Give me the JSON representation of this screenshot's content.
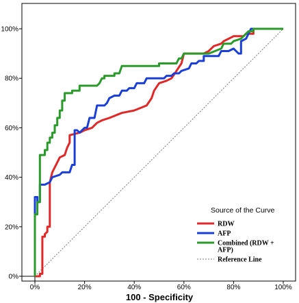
{
  "chart_data": {
    "type": "line",
    "title": "",
    "xlabel": "100 - Specificity",
    "ylabel": "",
    "xlim": [
      0,
      100
    ],
    "ylim": [
      0,
      100
    ],
    "x_ticks": [
      "0%",
      "20%",
      "40%",
      "60%",
      "80%",
      "100%"
    ],
    "y_ticks": [
      "0%",
      "20%",
      "40%",
      "60%",
      "80%",
      "100%"
    ],
    "grid": false,
    "legend": {
      "title": "Source of the Curve",
      "position": "bottom-right"
    },
    "series": [
      {
        "name": "RDW",
        "color": "#e02828",
        "style": "solid",
        "points": [
          [
            0,
            0
          ],
          [
            2,
            0
          ],
          [
            2,
            1
          ],
          [
            3,
            1
          ],
          [
            3,
            16
          ],
          [
            4,
            16
          ],
          [
            4,
            17
          ],
          [
            5,
            18
          ],
          [
            5,
            20
          ],
          [
            6,
            20
          ],
          [
            6,
            38
          ],
          [
            7,
            42
          ],
          [
            8,
            44
          ],
          [
            9,
            46
          ],
          [
            10,
            48
          ],
          [
            12,
            49
          ],
          [
            13,
            52
          ],
          [
            14,
            54
          ],
          [
            14,
            57
          ],
          [
            18,
            58
          ],
          [
            20,
            59
          ],
          [
            23,
            60
          ],
          [
            25,
            62
          ],
          [
            27,
            63
          ],
          [
            30,
            64
          ],
          [
            35,
            66
          ],
          [
            40,
            67
          ],
          [
            45,
            69
          ],
          [
            47,
            72
          ],
          [
            48,
            75
          ],
          [
            50,
            78
          ],
          [
            53,
            79
          ],
          [
            55,
            80
          ],
          [
            57,
            83
          ],
          [
            59,
            86
          ],
          [
            60,
            90
          ],
          [
            65,
            90
          ],
          [
            68,
            90
          ],
          [
            70,
            91
          ],
          [
            72,
            93
          ],
          [
            75,
            94
          ],
          [
            76,
            95
          ],
          [
            80,
            97
          ],
          [
            84,
            97
          ],
          [
            85,
            98
          ],
          [
            88,
            98
          ],
          [
            88,
            100
          ],
          [
            100,
            100
          ]
        ]
      },
      {
        "name": "AFP",
        "color": "#1a3fd9",
        "style": "solid",
        "points": [
          [
            0,
            0
          ],
          [
            0,
            32
          ],
          [
            1,
            32
          ],
          [
            1,
            30
          ],
          [
            2,
            30
          ],
          [
            2,
            37
          ],
          [
            4,
            37
          ],
          [
            6,
            38
          ],
          [
            7,
            40
          ],
          [
            10,
            41
          ],
          [
            11,
            42
          ],
          [
            14,
            42
          ],
          [
            15,
            45
          ],
          [
            16,
            45
          ],
          [
            16,
            59
          ],
          [
            17,
            59
          ],
          [
            18,
            58
          ],
          [
            20,
            60
          ],
          [
            21,
            60
          ],
          [
            22,
            64
          ],
          [
            24,
            64
          ],
          [
            25,
            69
          ],
          [
            28,
            69
          ],
          [
            29,
            70
          ],
          [
            30,
            72
          ],
          [
            32,
            73
          ],
          [
            34,
            73
          ],
          [
            35,
            75
          ],
          [
            37,
            75
          ],
          [
            38,
            76
          ],
          [
            40,
            76
          ],
          [
            41,
            78
          ],
          [
            44,
            78
          ],
          [
            45,
            80
          ],
          [
            52,
            80
          ],
          [
            53,
            81
          ],
          [
            55,
            81
          ],
          [
            56,
            82
          ],
          [
            58,
            82
          ],
          [
            59,
            83
          ],
          [
            62,
            84
          ],
          [
            63,
            86
          ],
          [
            65,
            86
          ],
          [
            66,
            87
          ],
          [
            68,
            87
          ],
          [
            68,
            89
          ],
          [
            74,
            89
          ],
          [
            75,
            91
          ],
          [
            78,
            91
          ],
          [
            80,
            92
          ],
          [
            81,
            91
          ],
          [
            82,
            90
          ],
          [
            83,
            90
          ],
          [
            83,
            95
          ],
          [
            85,
            96
          ],
          [
            86,
            98
          ],
          [
            87,
            100
          ],
          [
            100,
            100
          ]
        ]
      },
      {
        "name": "Combined (RDW + AFP)",
        "color": "#2a9a2a",
        "style": "solid",
        "points": [
          [
            0,
            0
          ],
          [
            0,
            25
          ],
          [
            1,
            25
          ],
          [
            1,
            30
          ],
          [
            2,
            30
          ],
          [
            2,
            49
          ],
          [
            4,
            49
          ],
          [
            4,
            51
          ],
          [
            5,
            51
          ],
          [
            5,
            54
          ],
          [
            6,
            54
          ],
          [
            6,
            56
          ],
          [
            7,
            56
          ],
          [
            7,
            58
          ],
          [
            8,
            58
          ],
          [
            8,
            61
          ],
          [
            9,
            61
          ],
          [
            9,
            64
          ],
          [
            10,
            64
          ],
          [
            10,
            67
          ],
          [
            11,
            67
          ],
          [
            11,
            71
          ],
          [
            12,
            71
          ],
          [
            12,
            74
          ],
          [
            14,
            74
          ],
          [
            15,
            74
          ],
          [
            15,
            75
          ],
          [
            18,
            75
          ],
          [
            18,
            77
          ],
          [
            25,
            77
          ],
          [
            26,
            78
          ],
          [
            27,
            80
          ],
          [
            28,
            80
          ],
          [
            28,
            81
          ],
          [
            32,
            81
          ],
          [
            32,
            82
          ],
          [
            34,
            82
          ],
          [
            35,
            85
          ],
          [
            50,
            85
          ],
          [
            50,
            86
          ],
          [
            57,
            86
          ],
          [
            58,
            88
          ],
          [
            59,
            88
          ],
          [
            60,
            90
          ],
          [
            65,
            90
          ],
          [
            70,
            90
          ],
          [
            75,
            92
          ],
          [
            76,
            94
          ],
          [
            79,
            94
          ],
          [
            80,
            95
          ],
          [
            83,
            96
          ],
          [
            84,
            97
          ],
          [
            85,
            98
          ],
          [
            86,
            99
          ],
          [
            88,
            99
          ],
          [
            88,
            100
          ],
          [
            100,
            100
          ]
        ]
      },
      {
        "name": "Reference Line",
        "color": "#777777",
        "style": "dotted",
        "points": [
          [
            0,
            0
          ],
          [
            100,
            100
          ]
        ]
      }
    ]
  }
}
